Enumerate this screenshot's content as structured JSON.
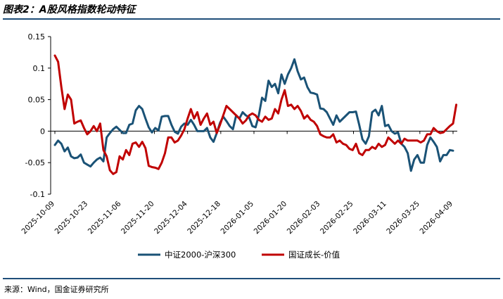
{
  "title": "图表2：A股风格指数轮动特征",
  "source": "来源：Wind，国金证券研究所",
  "chart_data": {
    "type": "line",
    "ylim": [
      -0.1,
      0.15
    ],
    "yticks": [
      -0.1,
      -0.05,
      0,
      0.05,
      0.1,
      0.15
    ],
    "ytick_labels": [
      "-0.1",
      "-0.05",
      "0",
      "0.05",
      "0.1",
      "0.15"
    ],
    "xtick_labels": [
      "2025-10-09",
      "2025-10-23",
      "2025-11-06",
      "2025-11-20",
      "2025-12-04",
      "2025-12-18",
      "2026-01-05",
      "2026-01-20",
      "2026-02-03",
      "2026-02-25",
      "2026-03-11",
      "2026-03-25",
      "2026-04-09"
    ],
    "legend_position": "bottom",
    "grid": false,
    "series": [
      {
        "name": "中证2000-沪深300",
        "color": "#1a5276",
        "values": [
          -0.022,
          -0.015,
          -0.02,
          -0.032,
          -0.026,
          -0.04,
          -0.043,
          -0.042,
          -0.037,
          -0.05,
          -0.053,
          -0.056,
          -0.05,
          -0.045,
          -0.042,
          -0.048,
          -0.01,
          -0.003,
          0.003,
          0.007,
          0.002,
          -0.003,
          -0.003,
          0.01,
          0.012,
          0.033,
          0.04,
          0.035,
          0.02,
          0.006,
          -0.002,
          0.005,
          0.001,
          0.023,
          0.024,
          0.024,
          0.01,
          -0.001,
          -0.004,
          0.007,
          0.012,
          0.01,
          0.018,
          0.01,
          0.0,
          0.0,
          0.0,
          0.005,
          -0.01,
          -0.017,
          -0.003,
          0.013,
          0.023,
          0.016,
          0.008,
          0.003,
          0.025,
          0.02,
          0.03,
          0.025,
          0.022,
          0.008,
          0.006,
          0.025,
          0.053,
          0.048,
          0.08,
          0.07,
          0.075,
          0.06,
          0.09,
          0.075,
          0.09,
          0.1,
          0.114,
          0.095,
          0.082,
          0.085,
          0.07,
          0.061,
          0.06,
          0.058,
          0.036,
          0.035,
          0.03,
          0.02,
          0.01,
          0.025,
          0.015,
          0.02,
          0.025,
          0.03,
          0.03,
          0.031,
          0.01,
          -0.013,
          -0.02,
          -0.008,
          0.03,
          0.034,
          0.025,
          0.04,
          0.008,
          0.01,
          0.0,
          -0.004,
          -0.002,
          -0.02,
          -0.025,
          -0.035,
          -0.063,
          -0.045,
          -0.038,
          -0.05,
          -0.05,
          -0.022,
          -0.01,
          -0.017,
          -0.025,
          -0.048,
          -0.038,
          -0.038,
          -0.03,
          -0.031
        ]
      },
      {
        "name": "国证成长-价值",
        "color": "#c00000",
        "values": [
          0.12,
          0.11,
          0.07,
          0.035,
          0.058,
          0.05,
          0.012,
          0.015,
          0.017,
          0.005,
          -0.005,
          0.0,
          0.008,
          0.0,
          0.012,
          -0.03,
          -0.04,
          -0.062,
          -0.068,
          -0.065,
          -0.04,
          -0.045,
          -0.03,
          -0.038,
          -0.02,
          -0.018,
          -0.025,
          -0.017,
          -0.027,
          -0.055,
          -0.057,
          -0.058,
          -0.06,
          -0.05,
          -0.035,
          -0.01,
          -0.01,
          -0.018,
          -0.015,
          -0.007,
          0.003,
          0.02,
          0.035,
          0.02,
          0.03,
          0.01,
          0.02,
          0.028,
          0.01,
          0.015,
          -0.003,
          0.01,
          0.025,
          0.04,
          0.035,
          0.03,
          0.025,
          0.02,
          0.012,
          0.017,
          0.025,
          0.028,
          0.025,
          0.018,
          0.015,
          0.023,
          0.018,
          0.02,
          0.035,
          0.028,
          0.05,
          0.065,
          0.04,
          0.042,
          0.035,
          0.04,
          0.032,
          0.02,
          0.025,
          0.018,
          0.015,
          0.008,
          -0.005,
          -0.008,
          -0.01,
          -0.01,
          -0.005,
          -0.018,
          -0.015,
          -0.02,
          -0.022,
          -0.028,
          -0.03,
          -0.02,
          -0.035,
          -0.038,
          -0.03,
          -0.03,
          -0.025,
          -0.028,
          -0.02,
          -0.025,
          -0.022,
          -0.01,
          -0.015,
          -0.02,
          -0.015,
          -0.02,
          -0.012,
          -0.015,
          -0.015,
          -0.015,
          -0.015,
          -0.018,
          -0.015,
          -0.005,
          -0.005,
          0.005,
          0.0,
          -0.003,
          -0.002,
          0.003,
          0.008,
          0.012,
          0.042
        ]
      }
    ]
  }
}
